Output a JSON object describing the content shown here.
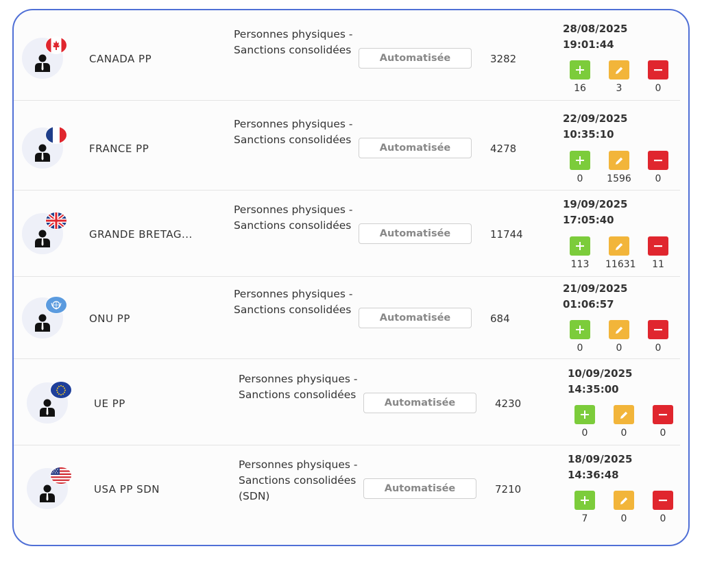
{
  "colors": {
    "frame_border": "#4f6fd6",
    "add_button": "#7ccc3b",
    "edit_button": "#f2b53a",
    "delete_button": "#e0262e"
  },
  "icons": {
    "avatar": "person-icon",
    "add": "plus-icon",
    "edit": "pencil-icon",
    "delete": "minus-icon"
  },
  "rows": [
    {
      "flag": "canada-flag-icon",
      "name": "CANADA PP",
      "description": "Personnes physiques - Sanctions consolidées",
      "mode": "Automatisée",
      "count": "3282",
      "date": "28/08/2025",
      "time": "19:01:44",
      "added": "16",
      "edited": "3",
      "deleted": "0"
    },
    {
      "flag": "france-flag-icon",
      "name": "FRANCE PP",
      "description": "Personnes physiques - Sanctions consolidées",
      "mode": "Automatisée",
      "count": "4278",
      "date": "22/09/2025",
      "time": "10:35:10",
      "added": "0",
      "edited": "1596",
      "deleted": "0"
    },
    {
      "flag": "uk-flag-icon",
      "name": "GRANDE BRETAG...",
      "description": "Personnes physiques - Sanctions consolidées",
      "mode": "Automatisée",
      "count": "11744",
      "date": "19/09/2025",
      "time": "17:05:40",
      "added": "113",
      "edited": "11631",
      "deleted": "11"
    },
    {
      "flag": "un-flag-icon",
      "name": "ONU PP",
      "description": "Personnes physiques - Sanctions consolidées",
      "mode": "Automatisée",
      "count": "684",
      "date": "21/09/2025",
      "time": "01:06:57",
      "added": "0",
      "edited": "0",
      "deleted": "0"
    },
    {
      "flag": "eu-flag-icon",
      "name": "UE PP",
      "description": "Personnes physiques - Sanctions consolidées",
      "mode": "Automatisée",
      "count": "4230",
      "date": "10/09/2025",
      "time": "14:35:00",
      "added": "0",
      "edited": "0",
      "deleted": "0"
    },
    {
      "flag": "usa-flag-icon",
      "name": "USA PP SDN",
      "description": "Personnes physiques - Sanctions consolidées (SDN)",
      "mode": "Automatisée",
      "count": "7210",
      "date": "18/09/2025",
      "time": "14:36:48",
      "added": "7",
      "edited": "0",
      "deleted": "0"
    }
  ]
}
